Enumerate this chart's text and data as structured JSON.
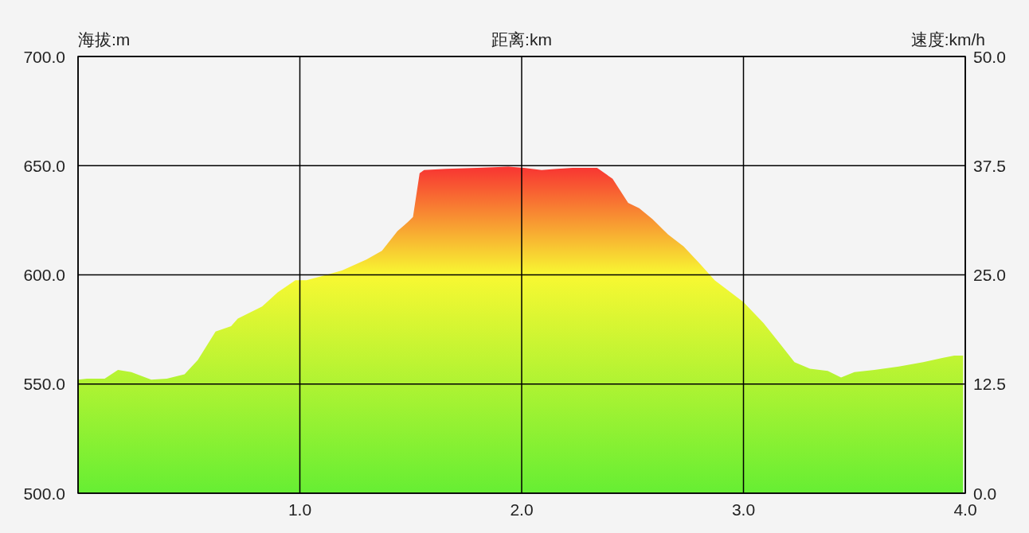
{
  "chart_data": {
    "type": "area",
    "xlabel": "距离:km",
    "ylabel": "海拔:m",
    "y2label": "速度:km/h",
    "xlim": [
      0,
      4
    ],
    "xticks": [
      {
        "value": 0,
        "label": null
      },
      {
        "value": 1,
        "label": "1.0"
      },
      {
        "value": 2,
        "label": "2.0"
      },
      {
        "value": 3,
        "label": "3.0"
      },
      {
        "value": 4,
        "label": "4.0"
      }
    ],
    "ylim": [
      500,
      700
    ],
    "yticks": [
      {
        "value": 500,
        "label": "500.0"
      },
      {
        "value": 550,
        "label": "550.0"
      },
      {
        "value": 600,
        "label": "600.0"
      },
      {
        "value": 650,
        "label": "650.0"
      },
      {
        "value": 700,
        "label": "700.0"
      }
    ],
    "y2lim": [
      0,
      50
    ],
    "y2ticks": [
      {
        "value": 0,
        "label": "0.0"
      },
      {
        "value": 12.5,
        "label": "12.5"
      },
      {
        "value": 25,
        "label": "25.0"
      },
      {
        "value": 37.5,
        "label": "37.5"
      },
      {
        "value": 50,
        "label": "50.0"
      }
    ],
    "grid": true,
    "x": [
      0,
      0.04,
      0.12,
      0.18,
      0.24,
      0.33,
      0.4,
      0.48,
      0.54,
      0.62,
      0.69,
      0.72,
      0.83,
      0.9,
      0.98,
      1.03,
      1.12,
      1.19,
      1.3,
      1.37,
      1.44,
      1.49,
      1.51,
      1.54,
      1.56,
      1.66,
      1.8,
      1.94,
      2.01,
      2.09,
      2.16,
      2.23,
      2.34,
      2.41,
      2.48,
      2.53,
      2.59,
      2.66,
      2.73,
      2.8,
      2.87,
      3.0,
      3.09,
      3.16,
      3.23,
      3.3,
      3.38,
      3.44,
      3.5,
      3.59,
      3.7,
      3.81,
      3.9,
      3.95,
      3.99
    ],
    "series": [
      {
        "color": "#66ee33",
        "values": [
          552,
          552.5,
          552.5,
          556.5,
          555.5,
          552,
          552.5,
          554.5,
          561,
          574,
          576.5,
          580,
          585.5,
          592,
          597.5,
          597.5,
          600,
          602,
          607,
          611,
          620,
          624.5,
          626.5,
          646.5,
          648,
          648.5,
          649,
          649.5,
          649,
          648,
          648.5,
          649,
          649,
          644,
          633,
          630.5,
          625.5,
          618.5,
          613,
          605.5,
          597.5,
          587.5,
          578,
          569,
          560,
          557,
          556,
          553,
          555.5,
          556.5,
          558,
          560,
          562,
          563,
          563
        ]
      }
    ]
  }
}
